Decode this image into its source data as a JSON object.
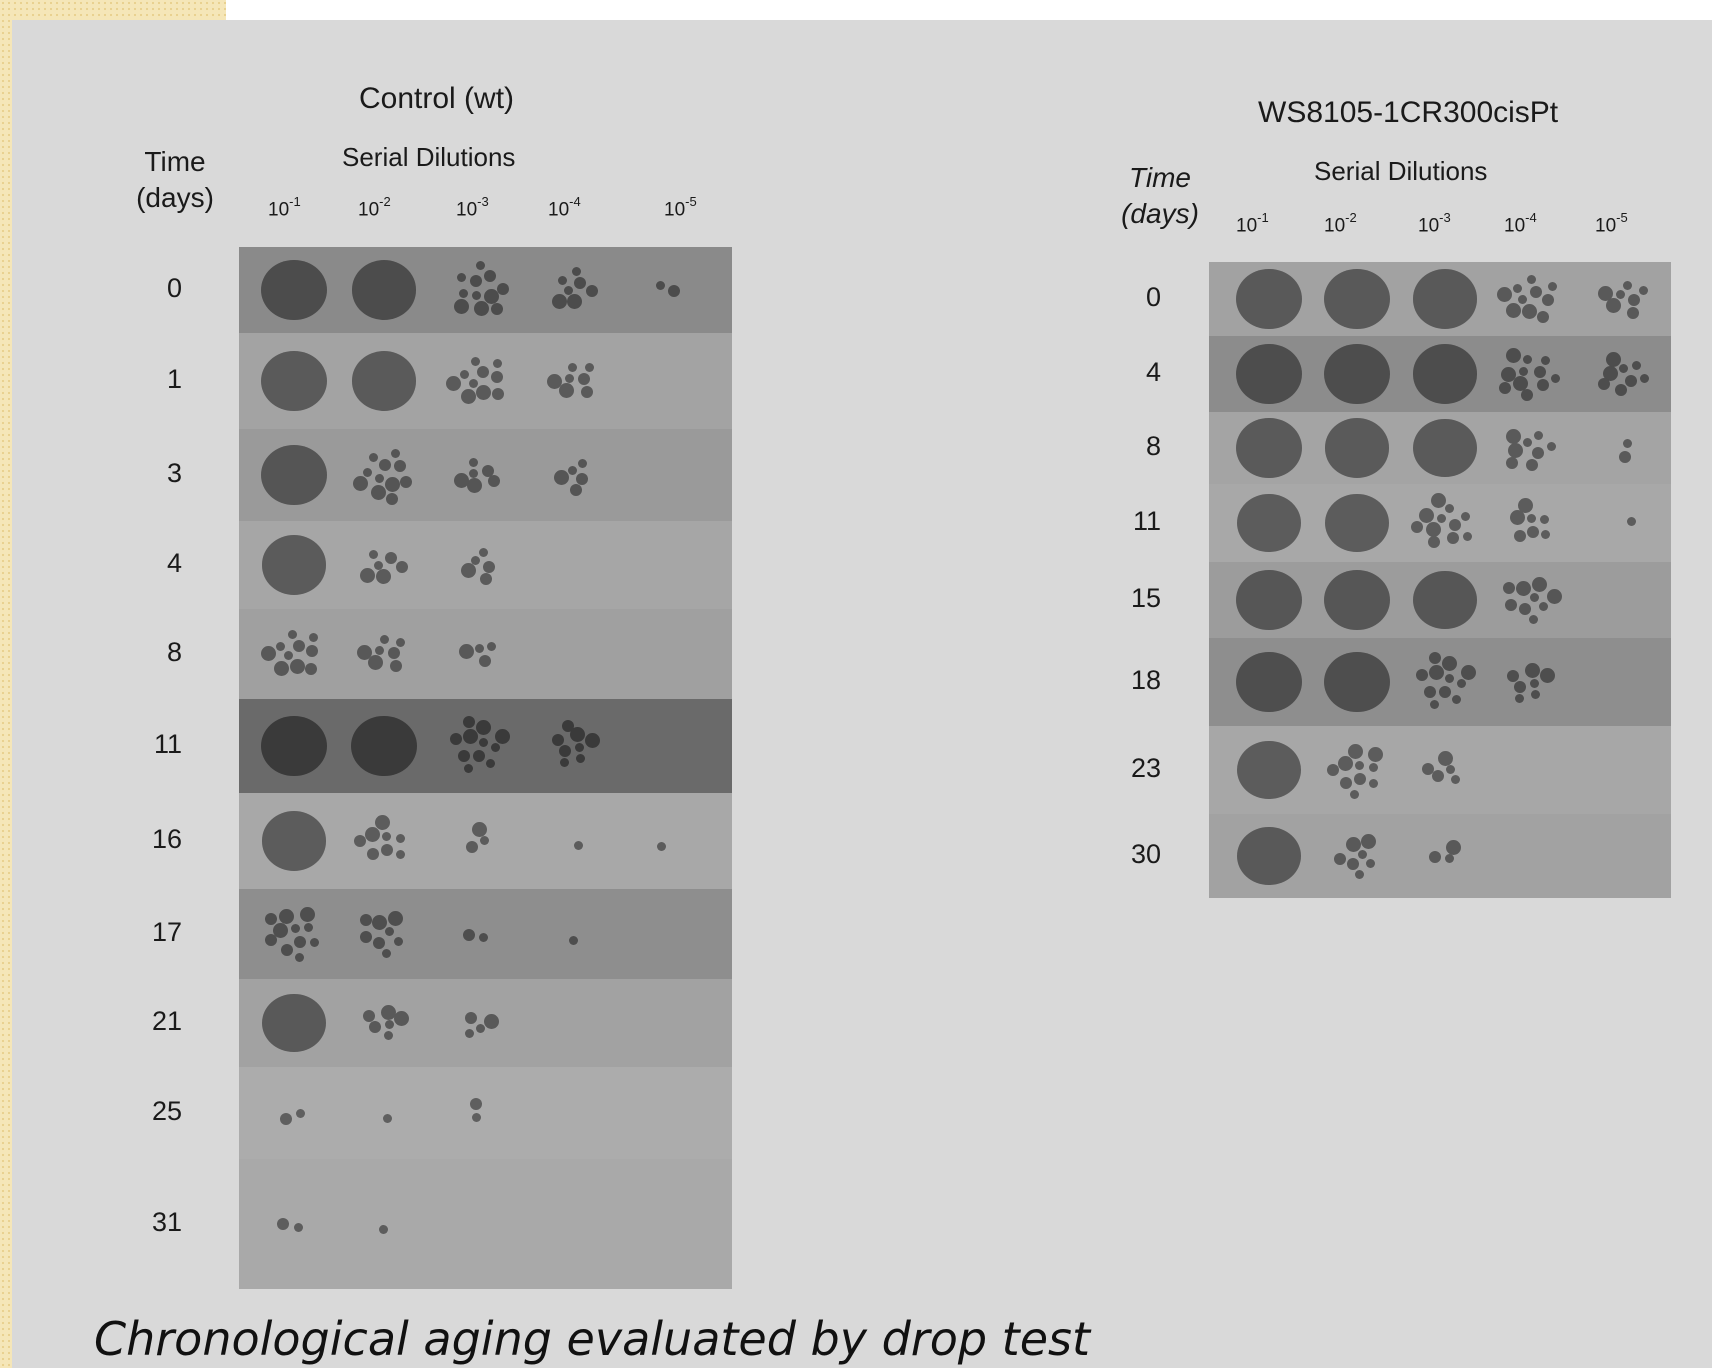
{
  "control": {
    "title": "Control (wt)",
    "time_label_1": "Time",
    "time_label_2": "(days)",
    "dilutions_label": "Serial Dilutions",
    "dilutions": [
      {
        "base": "10",
        "exp": "-1"
      },
      {
        "base": "10",
        "exp": "-2"
      },
      {
        "base": "10",
        "exp": "-3"
      },
      {
        "base": "10",
        "exp": "-4"
      },
      {
        "base": "10",
        "exp": "-5"
      }
    ],
    "rows": [
      {
        "day": "0",
        "growth": [
          1.0,
          0.9,
          0.75,
          0.5,
          0.15
        ],
        "shade": "#8a8a8a"
      },
      {
        "day": "1",
        "growth": [
          1.0,
          0.9,
          0.7,
          0.5,
          0.0
        ],
        "shade": "#a3a3a3"
      },
      {
        "day": "3",
        "growth": [
          1.0,
          0.75,
          0.4,
          0.35,
          0.0
        ],
        "shade": "#9a9a9a"
      },
      {
        "day": "4",
        "growth": [
          0.9,
          0.45,
          0.35,
          0.0,
          0.0
        ],
        "shade": "#a6a6a6"
      },
      {
        "day": "8",
        "growth": [
          0.7,
          0.5,
          0.3,
          0.0,
          0.0
        ],
        "shade": "#a0a0a0"
      },
      {
        "day": "11",
        "growth": [
          1.0,
          0.95,
          0.75,
          0.55,
          0.0
        ],
        "shade": "#6a6a6a"
      },
      {
        "day": "16",
        "growth": [
          0.9,
          0.6,
          0.2,
          0.05,
          0.05
        ],
        "shade": "#a8a8a8"
      },
      {
        "day": "17",
        "growth": [
          0.75,
          0.6,
          0.15,
          0.1,
          0.0
        ],
        "shade": "#8e8e8e"
      },
      {
        "day": "21",
        "growth": [
          0.8,
          0.4,
          0.3,
          0.0,
          0.0
        ],
        "shade": "#a2a2a2"
      },
      {
        "day": "25",
        "growth": [
          0.15,
          0.05,
          0.15,
          0.0,
          0.0
        ],
        "shade": "#acacac"
      },
      {
        "day": "31",
        "growth": [
          0.15,
          0.05,
          0.0,
          0.0,
          0.0
        ],
        "shade": "#a9a9a9"
      }
    ]
  },
  "mutant": {
    "title": "WS8105-1CR300cisPt",
    "time_label_1": "Time",
    "time_label_2": "(days)",
    "dilutions_label": "Serial Dilutions",
    "dilutions": [
      {
        "base": "10",
        "exp": "-1"
      },
      {
        "base": "10",
        "exp": "-2"
      },
      {
        "base": "10",
        "exp": "-3"
      },
      {
        "base": "10",
        "exp": "-4"
      },
      {
        "base": "10",
        "exp": "-5"
      }
    ],
    "rows": [
      {
        "day": "0",
        "growth": [
          1.0,
          0.95,
          0.9,
          0.7,
          0.5
        ],
        "shade": "#a2a2a2"
      },
      {
        "day": "4",
        "growth": [
          1.0,
          0.95,
          0.9,
          0.75,
          0.55
        ],
        "shade": "#8c8c8c"
      },
      {
        "day": "8",
        "growth": [
          1.0,
          0.9,
          0.8,
          0.6,
          0.15
        ],
        "shade": "#a4a4a4"
      },
      {
        "day": "11",
        "growth": [
          0.85,
          0.8,
          0.75,
          0.5,
          0.1
        ],
        "shade": "#a8a8a8"
      },
      {
        "day": "15",
        "growth": [
          1.0,
          1.0,
          0.8,
          0.65,
          0.0
        ],
        "shade": "#9c9c9c"
      },
      {
        "day": "18",
        "growth": [
          1.0,
          0.95,
          0.75,
          0.5,
          0.0
        ],
        "shade": "#8e8e8e"
      },
      {
        "day": "23",
        "growth": [
          0.85,
          0.7,
          0.35,
          0.0,
          0.0
        ],
        "shade": "#a7a7a7"
      },
      {
        "day": "30",
        "growth": [
          0.85,
          0.5,
          0.2,
          0.0,
          0.0
        ],
        "shade": "#a2a2a2"
      }
    ]
  },
  "caption": "Chronological aging evaluated by drop test"
}
